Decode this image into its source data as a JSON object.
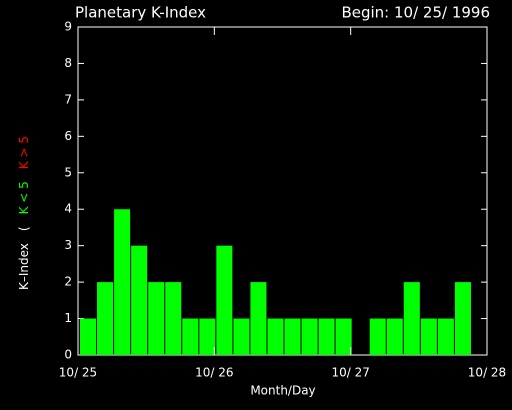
{
  "chart_data": {
    "type": "bar",
    "title": "Planetary K-Index",
    "subtitle": "Begin: 10/ 25/ 1996",
    "x_label": "Month/Day",
    "y_label": [
      {
        "text": "K–Index",
        "color": "#ffffff"
      },
      {
        "text": "(",
        "color": "#ffffff"
      },
      {
        "text": "K < 5",
        "color": "#00ff00"
      },
      {
        "text": "K > 5",
        "color": "#ff0000"
      }
    ],
    "x": [
      0,
      1,
      2,
      3,
      4,
      5,
      6,
      7,
      8,
      9,
      10,
      11,
      12,
      13,
      14,
      15,
      16,
      17,
      18,
      19,
      20,
      21,
      22,
      23
    ],
    "values": [
      1,
      2,
      4,
      3,
      2,
      2,
      1,
      1,
      3,
      1,
      2,
      1,
      1,
      1,
      1,
      1,
      null,
      1,
      1,
      2,
      1,
      1,
      2,
      null
    ],
    "color": "#00ff00",
    "xlim": [
      0,
      24
    ],
    "xticks": [
      {
        "value": 0,
        "label": "10/ 25"
      },
      {
        "value": 8,
        "label": "10/ 26"
      },
      {
        "value": 16,
        "label": "10/ 27"
      },
      {
        "value": 24,
        "label": "10/ 28"
      }
    ],
    "ylim": [
      0,
      9
    ],
    "yticks": [
      0,
      1,
      2,
      3,
      4,
      5,
      6,
      7,
      8,
      9
    ]
  }
}
